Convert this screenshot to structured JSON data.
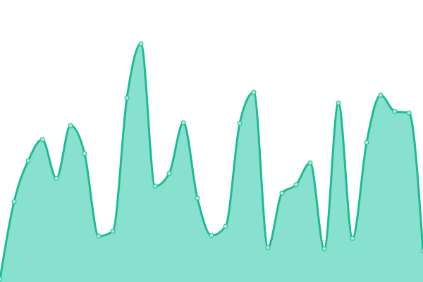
{
  "chart_data": {
    "type": "area",
    "title": "",
    "xlabel": "",
    "ylabel": "",
    "x": [
      0,
      1,
      2,
      3,
      4,
      5,
      6,
      7,
      8,
      9,
      10,
      11,
      12,
      13,
      14,
      15,
      16,
      17,
      18,
      19,
      20,
      21,
      22,
      23,
      24,
      25,
      26,
      27,
      28,
      29,
      30
    ],
    "series": [
      {
        "values": [
          4,
          114,
          172,
          202,
          147,
          222,
          182,
          65,
          72,
          261,
          338,
          136,
          154,
          226,
          119,
          66,
          79,
          225,
          269,
          49,
          126,
          138,
          169,
          47,
          254,
          62,
          198,
          265,
          242,
          240,
          44
        ]
      }
    ],
    "xlim": [
      0,
      30
    ],
    "ylim": [
      0,
      400
    ],
    "grid": false,
    "axes_visible": false,
    "curve": "smooth-monotone",
    "colors": {
      "line": "#1dbb93",
      "fill": "#88e0cf",
      "point_fill": "#a6ead9",
      "point_stroke": "#1dbb93"
    }
  }
}
